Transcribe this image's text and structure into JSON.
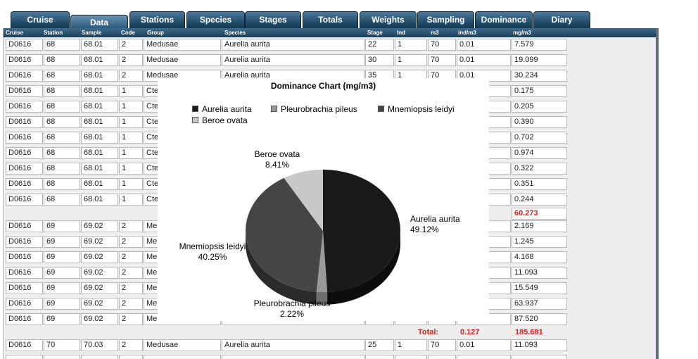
{
  "tabs": [
    {
      "label": "Cruise",
      "active": false
    },
    {
      "label": "Data",
      "active": true
    },
    {
      "label": "Stations",
      "active": false
    },
    {
      "label": "Species",
      "active": false
    },
    {
      "label": "Stages",
      "active": false
    },
    {
      "label": "Totals",
      "active": false
    },
    {
      "label": "Weights",
      "active": false
    },
    {
      "label": "Sampling",
      "active": false
    },
    {
      "label": "Dominance",
      "active": false
    },
    {
      "label": "Diary",
      "active": false
    }
  ],
  "columns": [
    "Cruise",
    "Station",
    "Sample",
    "Code",
    "Group",
    "Species",
    "Stage",
    "Ind",
    "m3",
    "ind/m3",
    "mg/m3"
  ],
  "rows": [
    {
      "kind": "data",
      "cells": [
        "D0616",
        "68",
        "68.01",
        "2",
        "Medusae",
        "Aurelia aurita",
        "22",
        "1",
        "70",
        "0.01",
        "7.579"
      ]
    },
    {
      "kind": "data",
      "cells": [
        "D0616",
        "68",
        "68.01",
        "2",
        "Medusae",
        "Aurelia aurita",
        "30",
        "1",
        "70",
        "0.01",
        "19.099"
      ]
    },
    {
      "kind": "data",
      "cells": [
        "D0616",
        "68",
        "68.01",
        "2",
        "Medusae",
        "Aurelia aurita",
        "35",
        "1",
        "70",
        "0.01",
        "30.234"
      ]
    },
    {
      "kind": "data",
      "cells": [
        "D0616",
        "68",
        "68.01",
        "1",
        "Cte",
        "",
        "",
        "",
        "",
        "",
        "0.175"
      ]
    },
    {
      "kind": "data",
      "cells": [
        "D0616",
        "68",
        "68.01",
        "1",
        "Cte",
        "",
        "",
        "",
        "",
        "",
        "0.205"
      ]
    },
    {
      "kind": "data",
      "cells": [
        "D0616",
        "68",
        "68.01",
        "1",
        "Cte",
        "",
        "",
        "",
        "",
        "",
        "0.390"
      ]
    },
    {
      "kind": "data",
      "cells": [
        "D0616",
        "68",
        "68.01",
        "1",
        "Cte",
        "",
        "",
        "",
        "",
        "",
        "0.702"
      ]
    },
    {
      "kind": "data",
      "cells": [
        "D0616",
        "68",
        "68.01",
        "1",
        "Cte",
        "",
        "",
        "",
        "",
        "",
        "0.974"
      ]
    },
    {
      "kind": "data",
      "cells": [
        "D0616",
        "68",
        "68.01",
        "1",
        "Cte",
        "",
        "",
        "",
        "",
        "",
        "0.322"
      ]
    },
    {
      "kind": "data",
      "cells": [
        "D0616",
        "68",
        "68.01",
        "1",
        "Cte",
        "",
        "",
        "",
        "",
        "",
        "0.351"
      ]
    },
    {
      "kind": "data",
      "cells": [
        "D0616",
        "68",
        "68.01",
        "1",
        "Cte",
        "",
        "",
        "",
        "",
        "",
        "0.244"
      ]
    },
    {
      "kind": "subtotal",
      "value": "60.273"
    },
    {
      "kind": "data",
      "cells": [
        "D0616",
        "69",
        "69.02",
        "2",
        "Me",
        "",
        "",
        "",
        "",
        "",
        "2.169"
      ]
    },
    {
      "kind": "data",
      "cells": [
        "D0616",
        "69",
        "69.02",
        "2",
        "Me",
        "",
        "",
        "",
        "",
        "",
        "1.245"
      ]
    },
    {
      "kind": "data",
      "cells": [
        "D0616",
        "69",
        "69.02",
        "2",
        "Me",
        "",
        "",
        "",
        "",
        "",
        "4.168"
      ]
    },
    {
      "kind": "data",
      "cells": [
        "D0616",
        "69",
        "69.02",
        "2",
        "Me",
        "",
        "",
        "",
        "",
        "",
        "11.093"
      ]
    },
    {
      "kind": "data",
      "cells": [
        "D0616",
        "69",
        "69.02",
        "2",
        "Me",
        "",
        "",
        "",
        "",
        "",
        "15.549"
      ]
    },
    {
      "kind": "data",
      "cells": [
        "D0616",
        "69",
        "69.02",
        "2",
        "Me",
        "",
        "",
        "",
        "",
        "",
        "63.937"
      ]
    },
    {
      "kind": "data",
      "cells": [
        "D0616",
        "69",
        "69.02",
        "2",
        "Me",
        "",
        "",
        "",
        "",
        "",
        "87.520"
      ]
    },
    {
      "kind": "total",
      "label": "Total:",
      "ind": "0.127",
      "mg": "185.681"
    },
    {
      "kind": "data",
      "cells": [
        "D0616",
        "70",
        "70.03",
        "2",
        "Medusae",
        "Aurelia aurita",
        "25",
        "1",
        "70",
        "0.01",
        "11.093"
      ]
    },
    {
      "kind": "data",
      "cells": [
        "",
        "",
        "",
        "",
        "",
        "",
        "",
        "",
        "",
        "",
        ""
      ]
    }
  ],
  "chart": {
    "title": "Dominance Chart (mg/m3)",
    "colors": [
      "#1a1a1a",
      "#999999",
      "#454545",
      "#c8c8c8"
    ],
    "side_colors": [
      "#0d0d0d",
      "#6e6e6e",
      "#2a2a2a",
      "#9a9a9a"
    ]
  },
  "chart_data": {
    "type": "pie",
    "title": "Dominance Chart (mg/m3)",
    "labels": [
      "Aurelia aurita",
      "Pleurobrachia pileus",
      "Mnemiopsis leidyi",
      "Beroe ovata"
    ],
    "values": [
      49.12,
      2.22,
      40.25,
      8.41
    ],
    "value_labels": [
      "49.12%",
      "2.22%",
      "40.25%",
      "8.41%"
    ],
    "legend": "top",
    "style": "3d"
  }
}
